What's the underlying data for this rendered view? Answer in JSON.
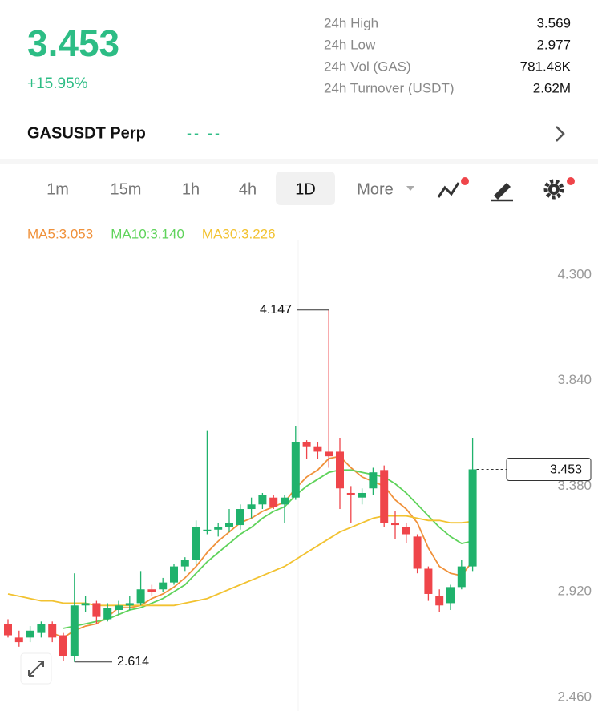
{
  "header": {
    "price": "3.453",
    "change": "+15.95%",
    "stats": [
      {
        "label": "24h High",
        "value": "3.569"
      },
      {
        "label": "24h Low",
        "value": "2.977"
      },
      {
        "label": "24h Vol (GAS)",
        "value": "781.48K"
      },
      {
        "label": "24h Turnover (USDT)",
        "value": "2.62M"
      }
    ]
  },
  "symbol": {
    "name": "GASUSDT Perp",
    "funding": "-- --"
  },
  "intervals": [
    "1m",
    "15m",
    "1h",
    "4h",
    "1D",
    "More"
  ],
  "ma_legend": [
    "MA5:3.053",
    "MA10:3.140",
    "MA30:3.226"
  ],
  "chart_data": {
    "type": "candlestick",
    "ylim": [
      2.4,
      4.45
    ],
    "yticks": [
      {
        "value": 4.3,
        "label": "4.300"
      },
      {
        "value": 3.84,
        "label": "3.840"
      },
      {
        "value": 3.38,
        "label": "3.380"
      },
      {
        "value": 2.92,
        "label": "2.920"
      },
      {
        "value": 2.46,
        "label": "2.460"
      }
    ],
    "grid": false,
    "up_color": "#20b26c",
    "down_color": "#ef454a",
    "open": [
      2.78,
      2.72,
      2.72,
      2.74,
      2.78,
      2.73,
      2.64,
      2.86,
      2.87,
      2.8,
      2.84,
      2.86,
      2.87,
      2.93,
      2.93,
      2.96,
      3.03,
      3.06,
      3.19,
      3.19,
      3.2,
      3.21,
      3.28,
      3.3,
      3.33,
      3.3,
      3.33,
      3.57,
      3.55,
      3.53,
      3.53,
      3.35,
      3.33,
      3.37,
      3.45,
      3.22,
      3.2,
      3.16,
      3.02,
      2.9,
      2.87,
      2.94,
      3.03
    ],
    "high": [
      2.8,
      2.75,
      2.77,
      2.79,
      2.79,
      2.74,
      3.0,
      2.9,
      2.88,
      2.87,
      2.88,
      2.9,
      3.01,
      2.95,
      2.98,
      3.04,
      3.07,
      3.23,
      3.62,
      3.22,
      3.28,
      3.3,
      3.33,
      3.35,
      3.34,
      3.34,
      3.64,
      3.58,
      3.57,
      4.147,
      3.59,
      3.38,
      3.37,
      3.46,
      3.47,
      3.27,
      3.22,
      3.17,
      3.03,
      2.93,
      2.95,
      3.06,
      3.59
    ],
    "low": [
      2.72,
      2.68,
      2.7,
      2.72,
      2.7,
      2.62,
      2.614,
      2.83,
      2.78,
      2.79,
      2.82,
      2.84,
      2.86,
      2.9,
      2.92,
      2.95,
      3.01,
      3.04,
      3.17,
      3.16,
      3.18,
      3.19,
      3.24,
      3.28,
      3.28,
      3.22,
      3.32,
      3.5,
      3.5,
      3.46,
      3.28,
      3.22,
      3.3,
      3.34,
      3.2,
      3.15,
      3.13,
      3.0,
      2.88,
      2.83,
      2.84,
      2.93,
      3.01
    ],
    "close": [
      2.73,
      2.7,
      2.75,
      2.78,
      2.72,
      2.64,
      2.86,
      2.87,
      2.81,
      2.85,
      2.86,
      2.87,
      2.93,
      2.92,
      2.96,
      3.03,
      3.06,
      3.2,
      3.19,
      3.2,
      3.22,
      3.28,
      3.3,
      3.34,
      3.29,
      3.33,
      3.57,
      3.55,
      3.53,
      3.51,
      3.37,
      3.34,
      3.35,
      3.44,
      3.22,
      3.21,
      3.17,
      3.02,
      2.91,
      2.86,
      2.94,
      3.03,
      3.453
    ],
    "series": [
      {
        "name": "MA5",
        "color": "#f0913a",
        "values": [
          null,
          null,
          null,
          null,
          2.74,
          2.72,
          2.75,
          2.77,
          2.78,
          2.81,
          2.85,
          2.85,
          2.86,
          2.89,
          2.91,
          2.94,
          2.98,
          3.03,
          3.09,
          3.14,
          3.18,
          3.22,
          3.24,
          3.27,
          3.29,
          3.31,
          3.37,
          3.42,
          3.45,
          3.5,
          3.51,
          3.46,
          3.42,
          3.4,
          3.38,
          3.32,
          3.28,
          3.22,
          3.11,
          3.03,
          3.0,
          2.99,
          3.053
        ]
      },
      {
        "name": "MA10",
        "color": "#5fd35b",
        "values": [
          null,
          null,
          null,
          null,
          null,
          2.76,
          2.77,
          2.78,
          2.79,
          2.8,
          2.82,
          2.84,
          2.85,
          2.87,
          2.89,
          2.92,
          2.95,
          3.0,
          3.05,
          3.09,
          3.13,
          3.17,
          3.2,
          3.24,
          3.27,
          3.29,
          3.34,
          3.38,
          3.41,
          3.44,
          3.45,
          3.45,
          3.44,
          3.43,
          3.42,
          3.39,
          3.35,
          3.3,
          3.25,
          3.2,
          3.16,
          3.13,
          3.14
        ]
      },
      {
        "name": "MA30",
        "color": "#f2c230",
        "values": [
          2.91,
          2.9,
          2.89,
          2.88,
          2.88,
          2.87,
          2.87,
          2.87,
          2.86,
          2.86,
          2.86,
          2.86,
          2.86,
          2.86,
          2.86,
          2.86,
          2.87,
          2.88,
          2.89,
          2.91,
          2.93,
          2.95,
          2.97,
          2.99,
          3.01,
          3.03,
          3.06,
          3.09,
          3.12,
          3.15,
          3.18,
          3.2,
          3.22,
          3.24,
          3.25,
          3.25,
          3.25,
          3.24,
          3.23,
          3.23,
          3.22,
          3.22,
          3.226
        ]
      }
    ],
    "max_label": "4.147",
    "min_label": "2.614",
    "last_label": "3.453"
  }
}
